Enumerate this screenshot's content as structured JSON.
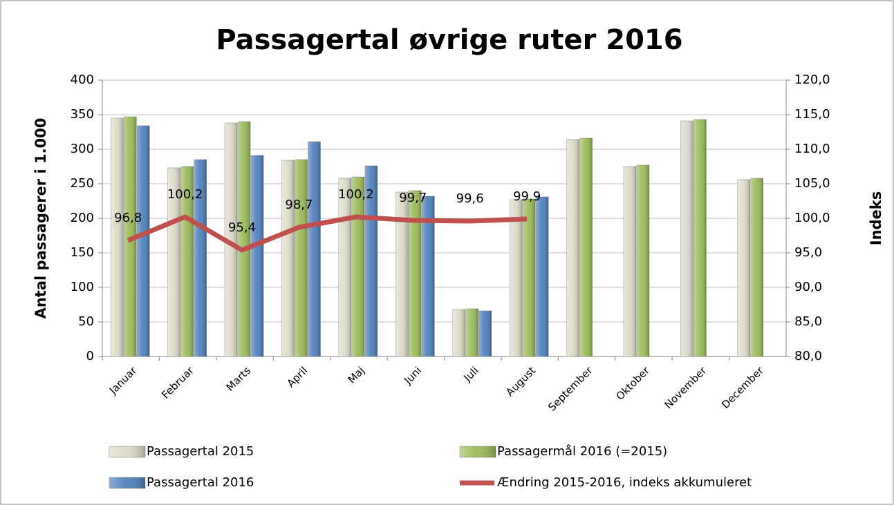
{
  "chart_data": {
    "type": "bar-line",
    "title": "Passagertal øvrige ruter 2016",
    "y_label": "Antal passagerer i 1.000",
    "y2_label": "Indeks",
    "categories": [
      "Januar",
      "Februar",
      "Marts",
      "April",
      "Maj",
      "Juni",
      "Juli",
      "August",
      "September",
      "Oktober",
      "November",
      "December"
    ],
    "series": [
      {
        "name": "Passagertal 2015",
        "color": "#dedbc8",
        "type": "bar",
        "values": [
          345,
          273,
          338,
          284,
          258,
          238,
          68,
          227,
          314,
          275,
          341,
          256
        ]
      },
      {
        "name": "Passagermål 2016 (=2015)",
        "color": "#9bbb59",
        "type": "bar",
        "values": [
          347,
          275,
          340,
          285,
          260,
          240,
          69,
          228,
          316,
          277,
          343,
          258
        ]
      },
      {
        "name": "Passagertal 2016",
        "color": "#4f81bd",
        "type": "bar",
        "values": [
          334,
          285,
          291,
          311,
          276,
          232,
          66,
          231,
          null,
          null,
          null,
          null
        ]
      },
      {
        "name": "Ændring 2015-2016, indeks akkumuleret",
        "color": "#c0504d",
        "type": "line",
        "axis": "y2",
        "values": [
          96.8,
          100.2,
          95.4,
          98.7,
          100.2,
          99.7,
          99.6,
          99.9,
          null,
          null,
          null,
          null
        ],
        "value_labels": [
          "96,8",
          "100,2",
          "95,4",
          "98,7",
          "100,2",
          "99,7",
          "99,6",
          "99,9",
          null,
          null,
          null,
          null
        ]
      }
    ],
    "ylim": [
      0,
      400
    ],
    "yticks": [
      0,
      50,
      100,
      150,
      200,
      250,
      300,
      350,
      400
    ],
    "y2lim": [
      80,
      120
    ],
    "y2ticks": [
      {
        "value": 80,
        "label": "80,0"
      },
      {
        "value": 85,
        "label": "85,0"
      },
      {
        "value": 90,
        "label": "90,0"
      },
      {
        "value": 95,
        "label": "95,0"
      },
      {
        "value": 100,
        "label": "100,0"
      },
      {
        "value": 105,
        "label": "105,0"
      },
      {
        "value": 110,
        "label": "110,0"
      },
      {
        "value": 115,
        "label": "115,0"
      },
      {
        "value": 120,
        "label": "120,0"
      }
    ],
    "grid": true,
    "legend": "bottom"
  }
}
